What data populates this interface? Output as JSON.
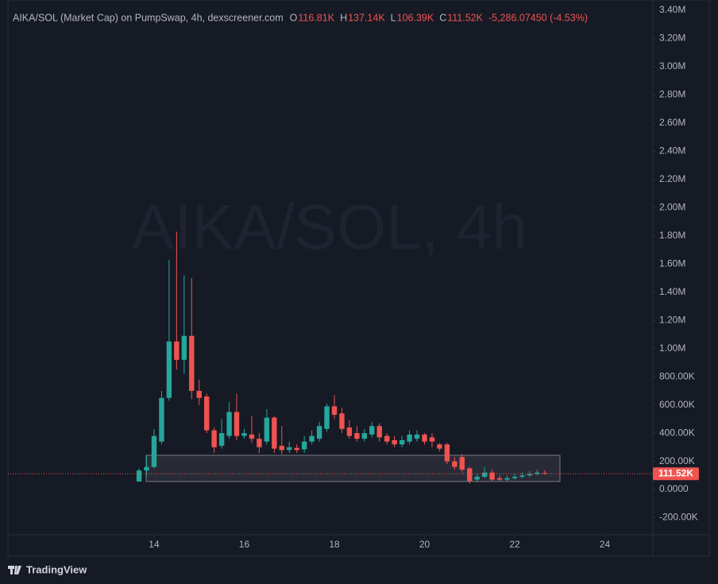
{
  "chart_data": {
    "type": "candlestick",
    "title": "AIKA/SOL (Market Cap) on PumpSwap, 4h, dexscreener.com",
    "ohlc_legend": [
      {
        "key": "O",
        "text": "116.81K"
      },
      {
        "key": "H",
        "text": "137.14K"
      },
      {
        "key": "L",
        "text": "106.39K"
      },
      {
        "key": "C",
        "text": "111.52K"
      }
    ],
    "change": "-5,286.07450 (-4.53%)",
    "watermark": "AIKA/SOL, 4h",
    "last_label": "111.52K",
    "up_color": "#26a69a",
    "down_color": "#ef5350",
    "x": [
      13.667,
      13.833,
      14,
      14.167,
      14.333,
      14.5,
      14.667,
      14.833,
      15,
      15.167,
      15.333,
      15.5,
      15.667,
      15.833,
      16,
      16.167,
      16.333,
      16.5,
      16.667,
      16.833,
      17,
      17.167,
      17.333,
      17.5,
      17.667,
      17.833,
      18,
      18.167,
      18.333,
      18.5,
      18.667,
      18.833,
      19,
      19.167,
      19.333,
      19.5,
      19.667,
      19.833,
      20,
      20.167,
      20.333,
      20.5,
      20.667,
      20.833,
      21,
      21.167,
      21.333,
      21.5,
      21.667,
      21.833,
      22,
      22.167,
      22.333,
      22.5,
      22.667
    ],
    "open": [
      56000,
      135000,
      160000,
      340000,
      650000,
      1050000,
      920000,
      1090000,
      700000,
      660000,
      420000,
      310000,
      380000,
      550000,
      380000,
      390000,
      360000,
      340000,
      510000,
      310000,
      280000,
      295000,
      285000,
      340000,
      360000,
      430000,
      590000,
      540000,
      440000,
      400000,
      360000,
      390000,
      450000,
      380000,
      350000,
      320000,
      340000,
      360000,
      390000,
      370000,
      320000,
      320000,
      200000,
      230000,
      150000,
      70000,
      90000,
      120000,
      80000,
      70000,
      80000,
      90000,
      100000,
      110000,
      116810
    ],
    "high": [
      150000,
      240000,
      430000,
      700000,
      1630000,
      1830000,
      1520000,
      1500000,
      780000,
      680000,
      440000,
      500000,
      620000,
      680000,
      430000,
      520000,
      400000,
      570000,
      520000,
      450000,
      340000,
      320000,
      380000,
      420000,
      480000,
      610000,
      670000,
      580000,
      490000,
      450000,
      430000,
      480000,
      470000,
      400000,
      380000,
      380000,
      420000,
      420000,
      400000,
      400000,
      330000,
      330000,
      230000,
      250000,
      160000,
      110000,
      160000,
      140000,
      100000,
      100000,
      110000,
      120000,
      130000,
      140000,
      137140
    ],
    "low": [
      56000,
      90000,
      150000,
      320000,
      630000,
      850000,
      820000,
      640000,
      600000,
      400000,
      260000,
      290000,
      360000,
      350000,
      360000,
      330000,
      260000,
      320000,
      260000,
      250000,
      260000,
      260000,
      260000,
      320000,
      340000,
      410000,
      500000,
      400000,
      360000,
      340000,
      340000,
      370000,
      340000,
      320000,
      300000,
      300000,
      320000,
      340000,
      320000,
      300000,
      270000,
      180000,
      140000,
      120000,
      40000,
      50000,
      80000,
      60000,
      60000,
      60000,
      70000,
      80000,
      90000,
      100000,
      106390
    ],
    "close": [
      135000,
      160000,
      380000,
      650000,
      1050000,
      920000,
      1090000,
      700000,
      650000,
      420000,
      300000,
      400000,
      550000,
      380000,
      400000,
      360000,
      300000,
      510000,
      290000,
      280000,
      300000,
      280000,
      340000,
      380000,
      450000,
      590000,
      530000,
      430000,
      380000,
      360000,
      400000,
      450000,
      370000,
      340000,
      320000,
      350000,
      390000,
      390000,
      340000,
      340000,
      290000,
      200000,
      160000,
      140000,
      60000,
      90000,
      120000,
      70000,
      70000,
      80000,
      90000,
      100000,
      110000,
      120000,
      111520
    ],
    "xlim": [
      10.758,
      25.066
    ],
    "xticks": [
      14,
      16,
      18,
      20,
      22,
      24
    ],
    "ylim": [
      -321000,
      3473000
    ],
    "yticks": [
      {
        "value": -200000,
        "label": "-200.00K"
      },
      {
        "value": 0,
        "label": "0.0000"
      },
      {
        "value": 200000,
        "label": "200.00K"
      },
      {
        "value": 400000,
        "label": "400.00K"
      },
      {
        "value": 600000,
        "label": "600.00K"
      },
      {
        "value": 800000,
        "label": "800.00K"
      },
      {
        "value": 1000000,
        "label": "1.00M"
      },
      {
        "value": 1200000,
        "label": "1.20M"
      },
      {
        "value": 1400000,
        "label": "1.40M"
      },
      {
        "value": 1600000,
        "label": "1.60M"
      },
      {
        "value": 1800000,
        "label": "1.80M"
      },
      {
        "value": 2000000,
        "label": "2.00M"
      },
      {
        "value": 2200000,
        "label": "2.20M"
      },
      {
        "value": 2400000,
        "label": "2.40M"
      },
      {
        "value": 2600000,
        "label": "2.60M"
      },
      {
        "value": 2800000,
        "label": "2.80M"
      },
      {
        "value": 3000000,
        "label": "3.00M"
      },
      {
        "value": 3200000,
        "label": "3.20M"
      },
      {
        "value": 3400000,
        "label": "3.40M"
      }
    ],
    "grid": false,
    "branding": "TradingView"
  }
}
